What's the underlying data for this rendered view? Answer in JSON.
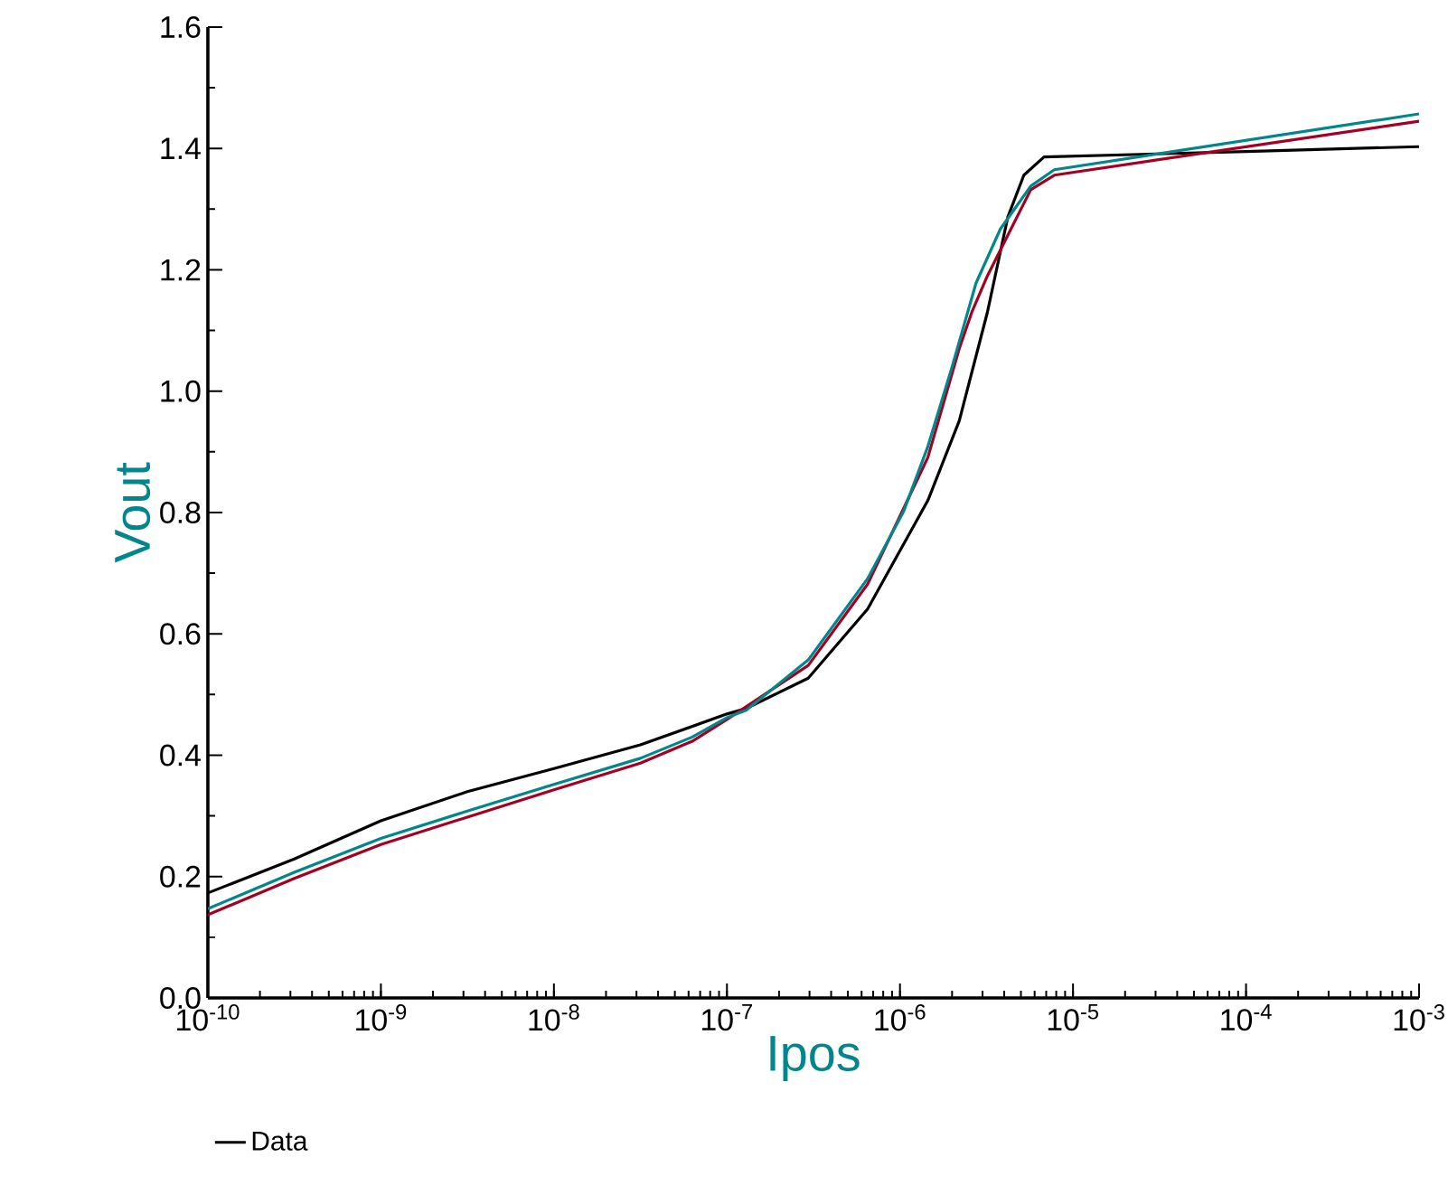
{
  "chart_data": {
    "type": "line",
    "xlabel": "Ipos",
    "ylabel": "Vout",
    "log": "x",
    "legend": "bottom",
    "xlim": [
      1e-10,
      0.001
    ],
    "ylim": [
      0,
      1.6
    ],
    "xticks": [
      {
        "value": 1e-10,
        "label": "10$^{-10}$"
      },
      {
        "value": 1e-09,
        "label": "10$^{-9}$"
      },
      {
        "value": 1e-08,
        "label": "10$^{-8}$"
      },
      {
        "value": 1e-07,
        "label": "10$^{-7}$"
      },
      {
        "value": 1e-06,
        "label": "10$^{-6}$"
      },
      {
        "value": 1e-05,
        "label": "10$^{-5}$"
      },
      {
        "value": 0.0001,
        "label": "10$^{-4}$"
      },
      {
        "value": 0.001,
        "label": "10$^{-3}$"
      }
    ],
    "yticks": [
      {
        "value": 0,
        "label": "0.0"
      },
      {
        "value": 0.2,
        "label": "0.2"
      },
      {
        "value": 0.4,
        "label": "0.4"
      },
      {
        "value": 0.6,
        "label": "0.6"
      },
      {
        "value": 0.8,
        "label": "0.8"
      },
      {
        "value": 1.0,
        "label": "1.0"
      },
      {
        "value": 1.2,
        "label": "1.2"
      },
      {
        "value": 1.4,
        "label": "1.4"
      },
      {
        "value": 1.6,
        "label": "1.6"
      }
    ],
    "series": [
      {
        "name": "Data",
        "color": "#000000",
        "x": [
          1e-10,
          3.16e-10,
          1e-09,
          3.16e-09,
          1e-08,
          3.16e-08,
          1e-07,
          1.29e-07,
          2.95e-07,
          6.5e-07,
          1.45e-06,
          2.2e-06,
          3.2e-06,
          4.2e-06,
          5.2e-06,
          6.8e-06,
          0.0001,
          0.001
        ],
        "values": [
          0.173,
          0.229,
          0.292,
          0.34,
          0.378,
          0.417,
          0.468,
          0.477,
          0.527,
          0.641,
          0.82,
          0.951,
          1.13,
          1.287,
          1.356,
          1.386,
          1.395,
          1.403
        ]
      },
      {
        "color": "#a50021",
        "x": [
          1e-10,
          3.16e-10,
          1e-09,
          3.16e-09,
          1e-08,
          3.16e-08,
          6.3e-08,
          1e-07,
          1.29e-07,
          2.95e-07,
          6.5e-07,
          1.45e-06,
          2.2e-06,
          2.6e-06,
          3.2e-06,
          4.2e-06,
          5.7e-06,
          7.8e-06,
          0.001
        ],
        "values": [
          0.137,
          0.197,
          0.253,
          0.298,
          0.343,
          0.387,
          0.423,
          0.459,
          0.48,
          0.548,
          0.682,
          0.891,
          1.07,
          1.13,
          1.19,
          1.257,
          1.332,
          1.356,
          1.445
        ]
      },
      {
        "color": "#00868b",
        "x": [
          1e-10,
          3.16e-10,
          1e-09,
          3.16e-09,
          1e-08,
          3.16e-08,
          6.3e-08,
          1e-07,
          1.29e-07,
          2.95e-07,
          6.5e-07,
          1.05e-06,
          1.45e-06,
          2e-06,
          2.75e-06,
          3.8e-06,
          5.7e-06,
          7.8e-06,
          0.001
        ],
        "values": [
          0.147,
          0.207,
          0.263,
          0.308,
          0.352,
          0.395,
          0.43,
          0.462,
          0.474,
          0.557,
          0.691,
          0.802,
          0.909,
          1.04,
          1.178,
          1.267,
          1.338,
          1.365,
          1.457
        ]
      }
    ]
  }
}
